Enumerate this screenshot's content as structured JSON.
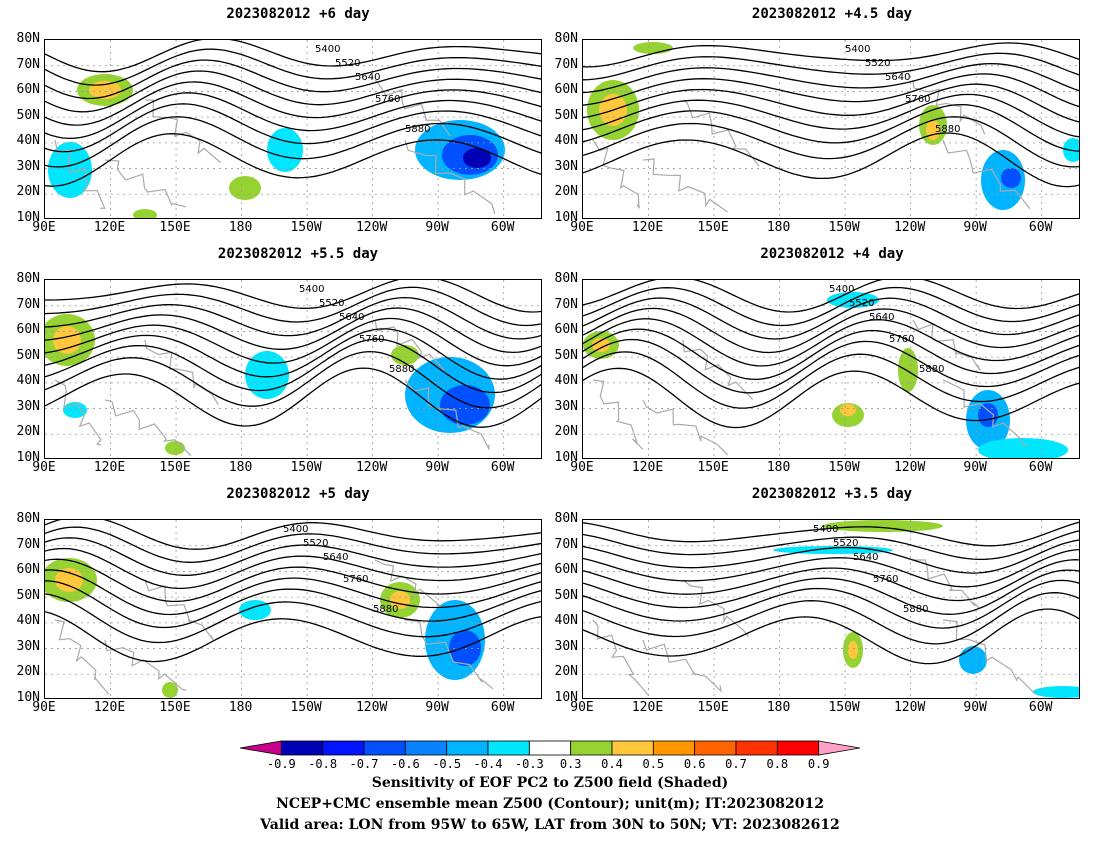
{
  "panels": [
    {
      "title": "2023082012  +6  day"
    },
    {
      "title": "2023082012  +4.5  day"
    },
    {
      "title": "2023082012  +5.5  day"
    },
    {
      "title": "2023082012  +4  day"
    },
    {
      "title": "2023082012  +5  day"
    },
    {
      "title": "2023082012  +3.5  day"
    }
  ],
  "lat_labels": [
    "80N",
    "70N",
    "60N",
    "50N",
    "40N",
    "30N",
    "20N",
    "10N"
  ],
  "lon_labels": [
    "90E",
    "120E",
    "150E",
    "180",
    "150W",
    "120W",
    "90W",
    "60W"
  ],
  "contour_labels": [
    "5400",
    "5520",
    "5640",
    "5760",
    "5880"
  ],
  "colorbar": {
    "labels": [
      "-0.9",
      "-0.8",
      "-0.7",
      "-0.6",
      "-0.5",
      "-0.4",
      "-0.3",
      "0.3",
      "0.4",
      "0.5",
      "0.6",
      "0.7",
      "0.8",
      "0.9"
    ],
    "colors": [
      "#c8008c",
      "#0000b4",
      "#0014ff",
      "#0050ff",
      "#0a82ff",
      "#00b4ff",
      "#00e6ff",
      "#ffffff",
      "#96d232",
      "#ffc83c",
      "#ff9600",
      "#ff6400",
      "#ff3200",
      "#ff0000",
      "#ffa0c8"
    ]
  },
  "footer": {
    "line1": "Sensitivity of EOF PC2 to Z500 field (Shaded)",
    "line2": "NCEP+CMC ensemble mean Z500 (Contour); unit(m); IT:2023082012",
    "line3": "Valid area: LON from 95W to 65W, LAT from 30N to 50N; VT: 2023082612"
  }
}
